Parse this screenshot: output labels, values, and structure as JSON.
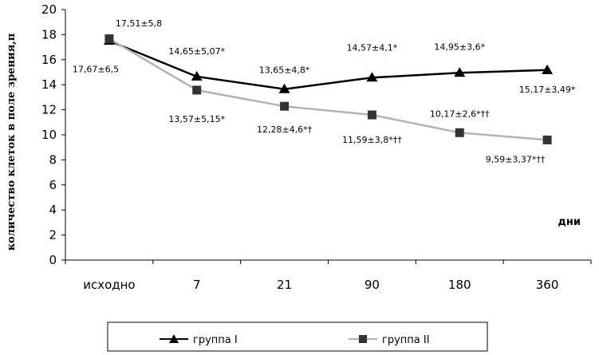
{
  "chart_data": {
    "type": "line",
    "categories": [
      "исходно",
      "7",
      "21",
      "90",
      "180",
      "360"
    ],
    "ylabel": "количество клеток в поле зрения,п",
    "xlabel": "дни",
    "ylim": [
      0,
      20
    ],
    "yticks": [
      "0",
      "2",
      "4",
      "6",
      "8",
      "10",
      "12",
      "14",
      "16",
      "18",
      "20"
    ],
    "grid": false,
    "legend_position": "bottom",
    "series": [
      {
        "name": "группа I",
        "marker": "triangle",
        "color": "#000000",
        "values": [
          17.51,
          14.65,
          13.65,
          14.57,
          14.95,
          15.17
        ],
        "labels": [
          "17,51±5,8",
          "14,65±5,07*",
          "13,65±4,8*",
          "14,57±4,1*",
          "14,95±3,6*",
          "15,17±3,49*"
        ]
      },
      {
        "name": "группа II",
        "marker": "square",
        "color": "#b3b3b3",
        "values": [
          17.67,
          13.57,
          12.28,
          11.59,
          10.17,
          9.59
        ],
        "labels": [
          "17,67±6,5",
          "13,57±5,15*",
          "12,28±4,6*†",
          "11,59±3,8*††",
          "10,17±2,6*††",
          "9,59±3,37*††"
        ]
      }
    ]
  }
}
